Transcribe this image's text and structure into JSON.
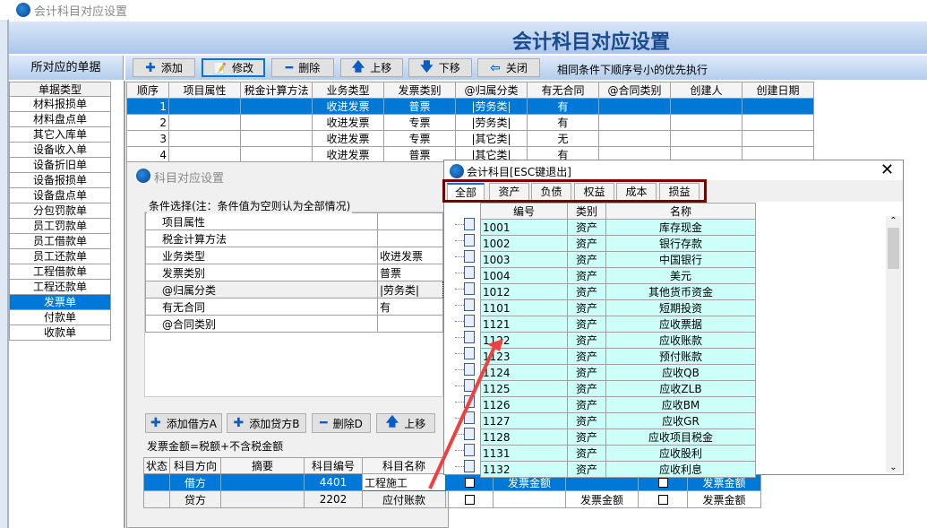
{
  "window": {
    "title": "会计科目对应设置",
    "banner_title": "会计科目对应设置"
  },
  "left": {
    "header": "所对应的单据",
    "col_header": "单据类型",
    "items": [
      "材料报损单",
      "材料盘点单",
      "其它入库单",
      "设备收入单",
      "设备折旧单",
      "设备报损单",
      "设备盘点单",
      "分包罚款单",
      "员工罚款单",
      "员工借款单",
      "员工还款单",
      "工程借款单",
      "工程还款单",
      "发票单",
      "付款单",
      "收款单"
    ],
    "selected": "发票单"
  },
  "toolbar": {
    "add": "添加",
    "edit": "修改",
    "delete": "删除",
    "up": "上移",
    "down": "下移",
    "close": "关闭",
    "hint": "相同条件下顺序号小的优先执行"
  },
  "rules": {
    "columns": [
      "顺序",
      "项目属性",
      "税金计算方法",
      "业务类型",
      "发票类别",
      "@归属分类",
      "有无合同",
      "@合同类别",
      "创建人",
      "创建日期"
    ],
    "rows": [
      [
        "1",
        "",
        "",
        "收进发票",
        "普票",
        "|劳务类|",
        "有",
        "",
        "",
        ""
      ],
      [
        "2",
        "",
        "",
        "收进发票",
        "专票",
        "|劳务类|",
        "有",
        "",
        "",
        ""
      ],
      [
        "3",
        "",
        "",
        "收进发票",
        "专票",
        "|其它类|",
        "无",
        "",
        "",
        ""
      ],
      [
        "4",
        "",
        "",
        "收进发票",
        "普票",
        "|其它类|",
        "有",
        "",
        "",
        ""
      ]
    ]
  },
  "dialog": {
    "title": "科目对应设置",
    "group_label": "条件选择(注：条件值为空则认为全部情况)",
    "conditions": [
      [
        "项目属性",
        ""
      ],
      [
        "税金计算方法",
        ""
      ],
      [
        "业务类型",
        "收进发票"
      ],
      [
        "发票类别",
        "普票"
      ],
      [
        "@归属分类",
        "|劳务类|"
      ],
      [
        "有无合同",
        "有"
      ],
      [
        "@合同类别",
        ""
      ]
    ],
    "buttons": {
      "add_debit": "添加借方A",
      "add_credit": "添加贷方B",
      "delete": "删除D",
      "up": "上移"
    },
    "formula": "发票金额=税额+不含税金额",
    "entry_columns": [
      "状态",
      "科目方向",
      "摘要",
      "科目编号",
      "科目名称"
    ],
    "entries": [
      [
        "",
        "借方",
        "",
        "4401",
        "工程施工",
        "",
        "发票金额",
        "",
        "",
        "发票金额"
      ],
      [
        "",
        "贷方",
        "",
        "2202",
        "应付账款",
        "",
        "",
        "发票金额",
        "",
        "发票金额"
      ]
    ]
  },
  "popup": {
    "title": "会计科目[ESC键退出]",
    "tabs": [
      "全部",
      "资产",
      "负债",
      "权益",
      "成本",
      "损益"
    ],
    "active_tab": "全部",
    "columns": [
      "编号",
      "类别",
      "名称"
    ],
    "rows": [
      [
        "1001",
        "资产",
        "库存现金"
      ],
      [
        "1002",
        "资产",
        "银行存款"
      ],
      [
        "1003",
        "资产",
        "中国银行"
      ],
      [
        "1004",
        "资产",
        "美元"
      ],
      [
        "1012",
        "资产",
        "其他货币资金"
      ],
      [
        "1101",
        "资产",
        "短期投资"
      ],
      [
        "1121",
        "资产",
        "应收票据"
      ],
      [
        "1122",
        "资产",
        "应收账款"
      ],
      [
        "1123",
        "资产",
        "预付账款"
      ],
      [
        "1124",
        "资产",
        "应收QB"
      ],
      [
        "1125",
        "资产",
        "应收ZLB"
      ],
      [
        "1126",
        "资产",
        "应收BM"
      ],
      [
        "1127",
        "资产",
        "应收GR"
      ],
      [
        "1128",
        "资产",
        "应收项目税金"
      ],
      [
        "1131",
        "资产",
        "应收股利"
      ],
      [
        "1132",
        "资产",
        "应收利息"
      ]
    ]
  },
  "colors": {
    "selection": "#0078d7",
    "accent_highlight": "#7a0000",
    "grid_cyan": "#ccfff8",
    "annotation_arrow": "#f04040"
  }
}
